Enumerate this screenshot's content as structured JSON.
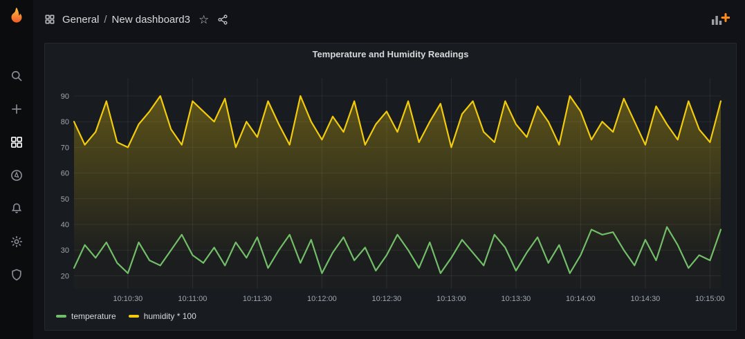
{
  "colors": {
    "page_bg": "#111217",
    "sidebar_bg": "#0b0c0e",
    "panel_bg": "#181b1f",
    "accent_orange": "#ff8c1a",
    "text_primary": "#d8d9da",
    "text_secondary": "#9fa7b3",
    "grid_line": "rgba(204,204,220,0.09)",
    "series_green": "#73bf69",
    "series_yellow": "#f2cc0c"
  },
  "icon_names": [
    "grafana-logo",
    "search",
    "plus",
    "apps-grid",
    "compass",
    "bell",
    "gear",
    "shield",
    "star",
    "share",
    "add-panel"
  ],
  "topnav": {
    "breadcrumb": {
      "folder": "General",
      "separator": "/",
      "title": "New dashboard3"
    },
    "star_icon": "☆"
  },
  "panel": {
    "title": "Temperature and Humidity Readings"
  },
  "chart_data": {
    "type": "line",
    "title": "Temperature and Humidity Readings",
    "xlabel": "",
    "ylabel": "",
    "grid": true,
    "legend_position": "bottom-left",
    "x_start_label": "10:10:05",
    "x_step_seconds": 5,
    "x_tick_labels": [
      "10:10:30",
      "10:11:00",
      "10:11:30",
      "10:12:00",
      "10:12:30",
      "10:13:00",
      "10:13:30",
      "10:14:00",
      "10:14:30",
      "10:15:00"
    ],
    "x_tick_indices": [
      5,
      11,
      17,
      23,
      29,
      35,
      41,
      47,
      53,
      59
    ],
    "yticks": [
      20,
      30,
      40,
      50,
      60,
      70,
      80,
      90
    ],
    "ylim": [
      15,
      97
    ],
    "series": [
      {
        "name": "temperature",
        "color": "#73bf69",
        "fill": false,
        "values": [
          23,
          32,
          27,
          33,
          25,
          21,
          33,
          26,
          24,
          30,
          36,
          28,
          25,
          31,
          24,
          33,
          27,
          35,
          23,
          30,
          36,
          25,
          34,
          21,
          29,
          35,
          26,
          31,
          22,
          28,
          36,
          30,
          23,
          33,
          21,
          27,
          34,
          29,
          24,
          36,
          31,
          22,
          29,
          35,
          25,
          32,
          21,
          28,
          38,
          36,
          37,
          30,
          24,
          34,
          26,
          39,
          32,
          23,
          28,
          26,
          38
        ]
      },
      {
        "name": "humidity * 100",
        "color": "#f2cc0c",
        "fill": true,
        "values": [
          80,
          71,
          76,
          88,
          72,
          70,
          79,
          84,
          90,
          77,
          71,
          88,
          84,
          80,
          89,
          70,
          80,
          74,
          88,
          79,
          71,
          90,
          80,
          73,
          82,
          76,
          88,
          71,
          79,
          84,
          76,
          88,
          72,
          80,
          87,
          70,
          83,
          88,
          76,
          72,
          88,
          79,
          74,
          86,
          80,
          71,
          90,
          84,
          73,
          80,
          76,
          89,
          80,
          71,
          86,
          79,
          73,
          88,
          77,
          72,
          88
        ]
      }
    ]
  }
}
